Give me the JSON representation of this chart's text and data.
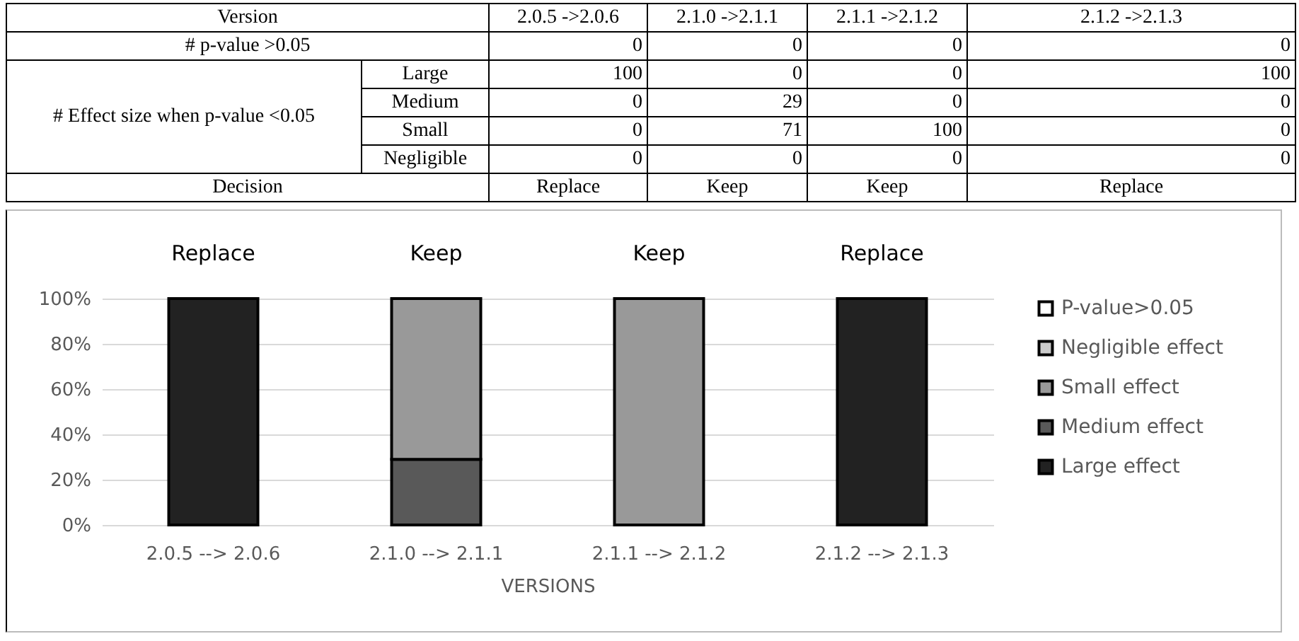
{
  "chart_data": [
    {
      "type": "other",
      "annotations": [
        "Version",
        "2.0.5 ->2.0.6",
        "2.1.0 ->2.1.1",
        "2.1.1 ->2.1.2",
        "2.1.2 ->2.1.3",
        "# p-value >0.05",
        "0",
        "0",
        "0",
        "0",
        "# Effect size when p-value <0.05",
        "Large",
        "100",
        "0",
        "0",
        "100",
        "Medium",
        "0",
        "29",
        "0",
        "0",
        "Small",
        "0",
        "71",
        "100",
        "0",
        "Negligible",
        "0",
        "0",
        "0",
        "0",
        "Decision",
        "Replace",
        "Keep",
        "Keep",
        "Replace"
      ]
    },
    {
      "type": "bar",
      "stacked": true,
      "xlabel": "VERSIONS",
      "categories": [
        "2.0.5  --> 2.0.6",
        "2.1.0  --> 2.1.1",
        "2.1.1  --> 2.1.2",
        "2.1.2  --> 2.1.3"
      ],
      "series": [
        {
          "name": "Large effect",
          "color": "#222222",
          "values": [
            100,
            0,
            0,
            100
          ]
        },
        {
          "name": "Medium effect",
          "color": "#595959",
          "values": [
            0,
            29,
            0,
            0
          ]
        },
        {
          "name": "Small effect",
          "color": "#999999",
          "values": [
            0,
            71,
            100,
            0
          ]
        },
        {
          "name": "Negligible effect",
          "color": "#cccccc",
          "values": [
            0,
            0,
            0,
            0
          ]
        },
        {
          "name": "P-value>0.05",
          "color": "#ffffff",
          "values": [
            0,
            0,
            0,
            0
          ]
        }
      ],
      "ylim": [
        0,
        100
      ],
      "yticks": [
        {
          "value": 0,
          "label": "0%"
        },
        {
          "value": 20,
          "label": "20%"
        },
        {
          "value": 40,
          "label": "40%"
        },
        {
          "value": 60,
          "label": "60%"
        },
        {
          "value": 80,
          "label": "80%"
        },
        {
          "value": 100,
          "label": "100%"
        }
      ],
      "grid": "y",
      "legend": "right",
      "annotations": [
        {
          "text": "Replace",
          "x": "2.0.5  --> 2.0.6",
          "y": 100
        },
        {
          "text": "Keep",
          "x": "2.1.0  --> 2.1.1",
          "y": 100
        },
        {
          "text": "Keep",
          "x": "2.1.1  --> 2.1.2",
          "y": 100
        },
        {
          "text": "Replace",
          "x": "2.1.2  --> 2.1.3",
          "y": 100
        }
      ]
    }
  ]
}
